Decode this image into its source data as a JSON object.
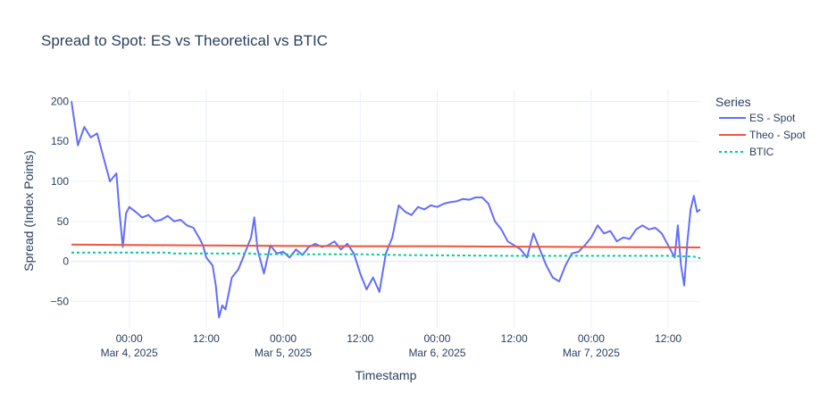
{
  "chart_data": {
    "type": "line",
    "title": "Spread to Spot: ES vs Theoretical vs BTIC",
    "xlabel": "Timestamp",
    "ylabel": "Spread (Index Points)",
    "legend_title": "Series",
    "legend_position": "top-right outside",
    "grid": true,
    "xlim": [
      "2025-03-03 15:00",
      "2025-03-07 17:00"
    ],
    "ylim": [
      -83,
      215
    ],
    "x_ticks": [
      {
        "x": "2025-03-04 00:00",
        "label": "00:00",
        "sublabel": "Mar 4, 2025"
      },
      {
        "x": "2025-03-04 12:00",
        "label": "12:00",
        "sublabel": ""
      },
      {
        "x": "2025-03-05 00:00",
        "label": "00:00",
        "sublabel": "Mar 5, 2025"
      },
      {
        "x": "2025-03-05 12:00",
        "label": "12:00",
        "sublabel": ""
      },
      {
        "x": "2025-03-06 00:00",
        "label": "00:00",
        "sublabel": "Mar 6, 2025"
      },
      {
        "x": "2025-03-06 12:00",
        "label": "12:00",
        "sublabel": ""
      },
      {
        "x": "2025-03-07 00:00",
        "label": "00:00",
        "sublabel": "Mar 7, 2025"
      },
      {
        "x": "2025-03-07 12:00",
        "label": "12:00",
        "sublabel": ""
      }
    ],
    "y_ticks": [
      -50,
      0,
      50,
      100,
      150,
      200
    ],
    "series": [
      {
        "name": "ES - Spot",
        "color": "#636efa",
        "dash": "solid",
        "points": [
          [
            "2025-03-03 15:00",
            200
          ],
          [
            "2025-03-03 16:00",
            145
          ],
          [
            "2025-03-03 17:00",
            168
          ],
          [
            "2025-03-03 18:00",
            155
          ],
          [
            "2025-03-03 19:00",
            160
          ],
          [
            "2025-03-03 20:00",
            130
          ],
          [
            "2025-03-03 21:00",
            100
          ],
          [
            "2025-03-03 22:00",
            110
          ],
          [
            "2025-03-03 22:30",
            60
          ],
          [
            "2025-03-03 23:00",
            18
          ],
          [
            "2025-03-03 23:30",
            60
          ],
          [
            "2025-03-04 00:00",
            68
          ],
          [
            "2025-03-04 01:00",
            62
          ],
          [
            "2025-03-04 02:00",
            55
          ],
          [
            "2025-03-04 03:00",
            58
          ],
          [
            "2025-03-04 04:00",
            50
          ],
          [
            "2025-03-04 05:00",
            52
          ],
          [
            "2025-03-04 06:00",
            57
          ],
          [
            "2025-03-04 07:00",
            50
          ],
          [
            "2025-03-04 08:00",
            52
          ],
          [
            "2025-03-04 09:00",
            45
          ],
          [
            "2025-03-04 10:00",
            42
          ],
          [
            "2025-03-04 11:00",
            28
          ],
          [
            "2025-03-04 11:30",
            20
          ],
          [
            "2025-03-04 12:00",
            5
          ],
          [
            "2025-03-04 13:00",
            -5
          ],
          [
            "2025-03-04 13:30",
            -30
          ],
          [
            "2025-03-04 14:00",
            -70
          ],
          [
            "2025-03-04 14:30",
            -55
          ],
          [
            "2025-03-04 15:00",
            -60
          ],
          [
            "2025-03-04 16:00",
            -20
          ],
          [
            "2025-03-04 17:00",
            -10
          ],
          [
            "2025-03-04 18:00",
            10
          ],
          [
            "2025-03-04 19:00",
            30
          ],
          [
            "2025-03-04 19:30",
            55
          ],
          [
            "2025-03-04 20:00",
            15
          ],
          [
            "2025-03-04 21:00",
            -15
          ],
          [
            "2025-03-04 22:00",
            20
          ],
          [
            "2025-03-04 23:00",
            10
          ],
          [
            "2025-03-05 00:00",
            12
          ],
          [
            "2025-03-05 01:00",
            5
          ],
          [
            "2025-03-05 02:00",
            15
          ],
          [
            "2025-03-05 03:00",
            8
          ],
          [
            "2025-03-05 04:00",
            18
          ],
          [
            "2025-03-05 05:00",
            22
          ],
          [
            "2025-03-05 06:00",
            18
          ],
          [
            "2025-03-05 07:00",
            20
          ],
          [
            "2025-03-05 08:00",
            25
          ],
          [
            "2025-03-05 09:00",
            15
          ],
          [
            "2025-03-05 10:00",
            22
          ],
          [
            "2025-03-05 11:00",
            10
          ],
          [
            "2025-03-05 12:00",
            -15
          ],
          [
            "2025-03-05 13:00",
            -35
          ],
          [
            "2025-03-05 14:00",
            -20
          ],
          [
            "2025-03-05 15:00",
            -38
          ],
          [
            "2025-03-05 16:00",
            10
          ],
          [
            "2025-03-05 17:00",
            30
          ],
          [
            "2025-03-05 18:00",
            70
          ],
          [
            "2025-03-05 19:00",
            62
          ],
          [
            "2025-03-05 20:00",
            58
          ],
          [
            "2025-03-05 21:00",
            68
          ],
          [
            "2025-03-05 22:00",
            65
          ],
          [
            "2025-03-05 23:00",
            70
          ],
          [
            "2025-03-06 00:00",
            68
          ],
          [
            "2025-03-06 01:00",
            72
          ],
          [
            "2025-03-06 02:00",
            74
          ],
          [
            "2025-03-06 03:00",
            75
          ],
          [
            "2025-03-06 04:00",
            78
          ],
          [
            "2025-03-06 05:00",
            77
          ],
          [
            "2025-03-06 06:00",
            80
          ],
          [
            "2025-03-06 07:00",
            80
          ],
          [
            "2025-03-06 08:00",
            72
          ],
          [
            "2025-03-06 09:00",
            50
          ],
          [
            "2025-03-06 10:00",
            40
          ],
          [
            "2025-03-06 11:00",
            25
          ],
          [
            "2025-03-06 12:00",
            20
          ],
          [
            "2025-03-06 13:00",
            15
          ],
          [
            "2025-03-06 14:00",
            5
          ],
          [
            "2025-03-06 15:00",
            35
          ],
          [
            "2025-03-06 16:00",
            15
          ],
          [
            "2025-03-06 17:00",
            -5
          ],
          [
            "2025-03-06 18:00",
            -20
          ],
          [
            "2025-03-06 19:00",
            -25
          ],
          [
            "2025-03-06 20:00",
            -5
          ],
          [
            "2025-03-06 21:00",
            10
          ],
          [
            "2025-03-06 22:00",
            12
          ],
          [
            "2025-03-06 23:00",
            20
          ],
          [
            "2025-03-07 00:00",
            30
          ],
          [
            "2025-03-07 01:00",
            45
          ],
          [
            "2025-03-07 02:00",
            35
          ],
          [
            "2025-03-07 03:00",
            38
          ],
          [
            "2025-03-07 04:00",
            25
          ],
          [
            "2025-03-07 05:00",
            30
          ],
          [
            "2025-03-07 06:00",
            28
          ],
          [
            "2025-03-07 07:00",
            40
          ],
          [
            "2025-03-07 08:00",
            45
          ],
          [
            "2025-03-07 09:00",
            40
          ],
          [
            "2025-03-07 10:00",
            42
          ],
          [
            "2025-03-07 11:00",
            35
          ],
          [
            "2025-03-07 12:00",
            20
          ],
          [
            "2025-03-07 13:00",
            5
          ],
          [
            "2025-03-07 13:30",
            45
          ],
          [
            "2025-03-07 14:00",
            -5
          ],
          [
            "2025-03-07 14:30",
            -30
          ],
          [
            "2025-03-07 15:00",
            25
          ],
          [
            "2025-03-07 15:30",
            65
          ],
          [
            "2025-03-07 16:00",
            82
          ],
          [
            "2025-03-07 16:30",
            62
          ],
          [
            "2025-03-07 17:00",
            65
          ]
        ]
      },
      {
        "name": "Theo - Spot",
        "color": "#ef553b",
        "dash": "solid",
        "points": [
          [
            "2025-03-03 15:00",
            21
          ],
          [
            "2025-03-04 00:00",
            20.5
          ],
          [
            "2025-03-04 12:00",
            20
          ],
          [
            "2025-03-05 00:00",
            19.5
          ],
          [
            "2025-03-05 12:00",
            19
          ],
          [
            "2025-03-06 00:00",
            19
          ],
          [
            "2025-03-06 12:00",
            18.5
          ],
          [
            "2025-03-07 00:00",
            18
          ],
          [
            "2025-03-07 17:00",
            17.5
          ]
        ]
      },
      {
        "name": "BTIC",
        "color": "#00cc96",
        "dash": "dot",
        "points": [
          [
            "2025-03-03 15:00",
            11
          ],
          [
            "2025-03-04 06:00",
            11
          ],
          [
            "2025-03-04 07:00",
            10
          ],
          [
            "2025-03-04 19:00",
            10
          ],
          [
            "2025-03-04 20:00",
            9
          ],
          [
            "2025-03-05 12:00",
            9
          ],
          [
            "2025-03-05 18:00",
            8
          ],
          [
            "2025-03-06 12:00",
            7
          ],
          [
            "2025-03-07 12:00",
            7
          ],
          [
            "2025-03-07 16:00",
            6
          ],
          [
            "2025-03-07 17:00",
            4
          ]
        ]
      }
    ]
  }
}
